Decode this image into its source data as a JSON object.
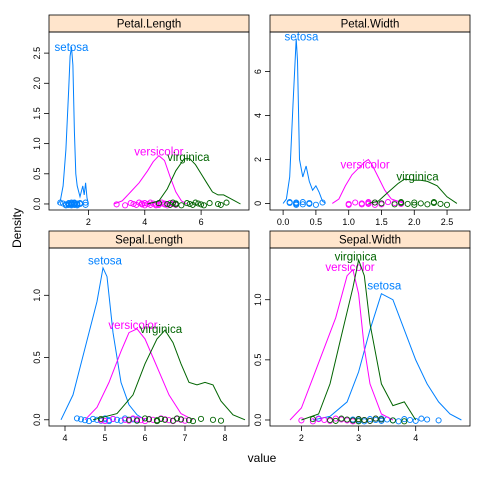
{
  "figure": {
    "xlabel": "value",
    "ylabel": "Density",
    "strip_color": "#ffe5cc",
    "group_colors": {
      "setosa": "#0080ff",
      "versicolor": "#ff00ff",
      "virginica": "#006400"
    }
  },
  "chart_data": [
    {
      "type": "line",
      "title": "Petal.Length",
      "xlim": [
        0.6,
        7.7
      ],
      "ylim": [
        -0.1,
        2.85
      ],
      "xticks": [
        2,
        4,
        6
      ],
      "yticks": [
        0.0,
        0.5,
        1.0,
        1.5,
        2.0,
        2.5
      ],
      "ytick_labels": [
        "0.0",
        "0.5",
        "1.0",
        "1.5",
        "2.0",
        "2.5"
      ],
      "series": [
        {
          "name": "setosa",
          "x": [
            0.9,
            1.0,
            1.1,
            1.2,
            1.3,
            1.35,
            1.4,
            1.45,
            1.5,
            1.55,
            1.6,
            1.7,
            1.8,
            1.85,
            1.9,
            1.95,
            2.0
          ],
          "values": [
            0.0,
            0.05,
            0.3,
            0.9,
            1.9,
            2.45,
            2.6,
            2.3,
            1.2,
            0.5,
            0.3,
            0.12,
            0.3,
            0.15,
            0.35,
            0.1,
            0.0
          ],
          "label": "setosa",
          "label_at": [
            1.4,
            2.6
          ],
          "points": [
            1.0,
            1.1,
            1.2,
            1.2,
            1.3,
            1.3,
            1.3,
            1.4,
            1.4,
            1.4,
            1.4,
            1.5,
            1.5,
            1.5,
            1.5,
            1.6,
            1.6,
            1.6,
            1.7,
            1.7,
            1.9,
            1.9
          ]
        },
        {
          "name": "versicolor",
          "x": [
            2.9,
            3.2,
            3.5,
            3.8,
            4.1,
            4.3,
            4.5,
            4.7,
            4.9,
            5.1,
            5.3,
            5.5
          ],
          "values": [
            0.0,
            0.05,
            0.2,
            0.35,
            0.55,
            0.7,
            0.8,
            0.72,
            0.45,
            0.2,
            0.05,
            0.0
          ],
          "label": "versicolor",
          "label_at": [
            4.5,
            0.87
          ],
          "points": [
            3.0,
            3.3,
            3.5,
            3.6,
            3.7,
            3.8,
            3.9,
            3.9,
            4.0,
            4.0,
            4.1,
            4.2,
            4.2,
            4.3,
            4.4,
            4.4,
            4.5,
            4.5,
            4.5,
            4.6,
            4.7,
            4.7,
            4.8,
            4.9,
            5.0,
            5.1
          ]
        },
        {
          "name": "virginica",
          "x": [
            4.1,
            4.5,
            4.8,
            5.1,
            5.4,
            5.6,
            5.8,
            6.0,
            6.2,
            6.4,
            6.6,
            6.8,
            7.0,
            7.2,
            7.4
          ],
          "values": [
            0.0,
            0.05,
            0.25,
            0.55,
            0.75,
            0.75,
            0.65,
            0.5,
            0.35,
            0.2,
            0.15,
            0.15,
            0.1,
            0.05,
            0.0
          ],
          "label": "virginica",
          "label_at": [
            5.55,
            0.78
          ],
          "points": [
            4.5,
            4.8,
            4.9,
            5.0,
            5.1,
            5.1,
            5.3,
            5.5,
            5.6,
            5.7,
            5.8,
            5.9,
            6.0,
            6.1,
            6.3,
            6.6,
            6.7,
            6.9
          ]
        }
      ]
    },
    {
      "type": "line",
      "title": "Petal.Width",
      "xlim": [
        -0.2,
        2.85
      ],
      "ylim": [
        -0.3,
        7.8
      ],
      "xticks": [
        0.0,
        0.5,
        1.0,
        1.5,
        2.0,
        2.5
      ],
      "xtick_labels": [
        "0.0",
        "0.5",
        "1.0",
        "1.5",
        "2.0",
        "2.5"
      ],
      "yticks": [
        0,
        2,
        4,
        6
      ],
      "series": [
        {
          "name": "setosa",
          "x": [
            0.0,
            0.05,
            0.1,
            0.15,
            0.2,
            0.22,
            0.25,
            0.3,
            0.35,
            0.4,
            0.45,
            0.5,
            0.55,
            0.6,
            0.65
          ],
          "values": [
            0.0,
            0.2,
            1.2,
            4.5,
            7.5,
            6.5,
            2.0,
            1.2,
            1.7,
            1.0,
            0.6,
            0.8,
            0.5,
            0.1,
            0.0
          ],
          "label": "setosa",
          "label_at": [
            0.28,
            7.6
          ],
          "points": [
            0.1,
            0.1,
            0.2,
            0.2,
            0.2,
            0.2,
            0.3,
            0.3,
            0.4,
            0.4,
            0.5,
            0.6
          ]
        },
        {
          "name": "versicolor",
          "x": [
            0.75,
            0.85,
            0.95,
            1.05,
            1.15,
            1.25,
            1.3,
            1.35,
            1.45,
            1.55,
            1.65,
            1.75,
            1.85
          ],
          "values": [
            0.0,
            0.2,
            0.8,
            1.3,
            1.6,
            1.9,
            2.0,
            1.8,
            1.2,
            0.6,
            0.2,
            0.1,
            0.0
          ],
          "label": "versicolor",
          "label_at": [
            1.25,
            1.78
          ],
          "points": [
            1.0,
            1.0,
            1.1,
            1.2,
            1.2,
            1.3,
            1.3,
            1.3,
            1.4,
            1.4,
            1.5,
            1.5,
            1.6,
            1.7,
            1.8
          ]
        },
        {
          "name": "virginica",
          "x": [
            1.3,
            1.45,
            1.6,
            1.75,
            1.85,
            2.0,
            2.1,
            2.2,
            2.35,
            2.5,
            2.65
          ],
          "values": [
            0.0,
            0.1,
            0.5,
            0.9,
            1.1,
            1.05,
            1.05,
            1.0,
            0.8,
            0.3,
            0.0
          ],
          "label": "virginica",
          "label_at": [
            2.05,
            1.23
          ],
          "points": [
            1.4,
            1.5,
            1.7,
            1.8,
            1.8,
            1.9,
            2.0,
            2.0,
            2.1,
            2.2,
            2.3,
            2.3,
            2.4,
            2.5
          ]
        }
      ]
    },
    {
      "type": "line",
      "title": "Sepal.Length",
      "xlim": [
        3.6,
        8.6
      ],
      "ylim": [
        -0.05,
        1.38
      ],
      "xticks": [
        4,
        5,
        6,
        7,
        8
      ],
      "yticks": [
        0.0,
        0.5,
        1.0
      ],
      "ytick_labels": [
        "0.0",
        "0.5",
        "1.0"
      ],
      "series": [
        {
          "name": "setosa",
          "x": [
            3.9,
            4.2,
            4.4,
            4.6,
            4.8,
            4.95,
            5.05,
            5.2,
            5.4,
            5.6,
            5.8,
            6.0
          ],
          "values": [
            0.0,
            0.2,
            0.45,
            0.7,
            0.95,
            1.22,
            1.15,
            0.7,
            0.3,
            0.12,
            0.04,
            0.0
          ],
          "label": "setosa",
          "label_at": [
            5.0,
            1.28
          ],
          "points": [
            4.3,
            4.4,
            4.5,
            4.6,
            4.7,
            4.8,
            4.9,
            5.0,
            5.0,
            5.1,
            5.1,
            5.2,
            5.3,
            5.4,
            5.5,
            5.7,
            5.8
          ]
        },
        {
          "name": "versicolor",
          "x": [
            4.5,
            4.8,
            5.1,
            5.4,
            5.6,
            5.8,
            6.0,
            6.2,
            6.4,
            6.6,
            6.9,
            7.2
          ],
          "values": [
            0.0,
            0.1,
            0.3,
            0.55,
            0.7,
            0.73,
            0.65,
            0.5,
            0.35,
            0.2,
            0.05,
            0.0
          ],
          "label": "versicolor",
          "label_at": [
            5.7,
            0.76
          ],
          "points": [
            4.9,
            5.0,
            5.2,
            5.5,
            5.6,
            5.7,
            5.8,
            5.9,
            6.0,
            6.1,
            6.2,
            6.3,
            6.4,
            6.5,
            6.6,
            6.7,
            6.8,
            6.9,
            7.0
          ]
        },
        {
          "name": "virginica",
          "x": [
            4.7,
            5.3,
            5.7,
            6.0,
            6.3,
            6.5,
            6.7,
            6.9,
            7.1,
            7.3,
            7.5,
            7.7,
            7.9,
            8.2,
            8.5
          ],
          "values": [
            0.0,
            0.05,
            0.2,
            0.45,
            0.65,
            0.72,
            0.62,
            0.45,
            0.3,
            0.28,
            0.3,
            0.28,
            0.15,
            0.04,
            0.0
          ],
          "label": "virginica",
          "label_at": [
            6.4,
            0.73
          ],
          "points": [
            4.9,
            5.6,
            5.8,
            6.0,
            6.1,
            6.3,
            6.3,
            6.4,
            6.5,
            6.7,
            6.8,
            6.9,
            7.1,
            7.2,
            7.4,
            7.7,
            7.9
          ]
        }
      ]
    },
    {
      "type": "line",
      "title": "Sepal.Width",
      "xlim": [
        1.45,
        4.95
      ],
      "ylim": [
        -0.05,
        1.43
      ],
      "xticks": [
        2,
        3,
        4
      ],
      "yticks": [
        0.0,
        0.5,
        1.0
      ],
      "ytick_labels": [
        "0.0",
        "0.5",
        "1.0"
      ],
      "series": [
        {
          "name": "setosa",
          "x": [
            2.2,
            2.5,
            2.8,
            3.0,
            3.2,
            3.4,
            3.6,
            3.8,
            4.0,
            4.2,
            4.4,
            4.6,
            4.8
          ],
          "values": [
            0.0,
            0.03,
            0.15,
            0.4,
            0.75,
            1.05,
            1.0,
            0.75,
            0.5,
            0.3,
            0.15,
            0.05,
            0.0
          ],
          "label": "setosa",
          "label_at": [
            3.45,
            1.12
          ],
          "points": [
            2.3,
            2.9,
            3.0,
            3.1,
            3.2,
            3.3,
            3.4,
            3.4,
            3.5,
            3.6,
            3.7,
            3.8,
            3.9,
            4.0,
            4.1,
            4.2,
            4.4
          ]
        },
        {
          "name": "versicolor",
          "x": [
            1.8,
            2.0,
            2.2,
            2.4,
            2.6,
            2.8,
            2.9,
            3.0,
            3.1,
            3.2,
            3.4,
            3.6
          ],
          "values": [
            0.0,
            0.1,
            0.35,
            0.6,
            0.85,
            1.2,
            1.25,
            1.05,
            0.6,
            0.3,
            0.05,
            0.0
          ],
          "label": "versicolor",
          "label_at": [
            2.85,
            1.27
          ],
          "points": [
            2.0,
            2.2,
            2.3,
            2.4,
            2.5,
            2.6,
            2.7,
            2.8,
            2.9,
            3.0,
            3.1,
            3.2,
            3.3,
            3.4
          ]
        },
        {
          "name": "virginica",
          "x": [
            2.0,
            2.3,
            2.5,
            2.7,
            2.9,
            3.0,
            3.1,
            3.2,
            3.4,
            3.6,
            3.8,
            4.0
          ],
          "values": [
            0.0,
            0.05,
            0.3,
            0.7,
            1.1,
            1.33,
            1.2,
            0.8,
            0.3,
            0.12,
            0.15,
            0.0
          ],
          "label": "virginica",
          "label_at": [
            2.95,
            1.36
          ],
          "points": [
            2.2,
            2.5,
            2.6,
            2.7,
            2.8,
            2.9,
            3.0,
            3.0,
            3.1,
            3.2,
            3.3,
            3.4,
            3.6,
            3.8
          ]
        }
      ]
    }
  ]
}
